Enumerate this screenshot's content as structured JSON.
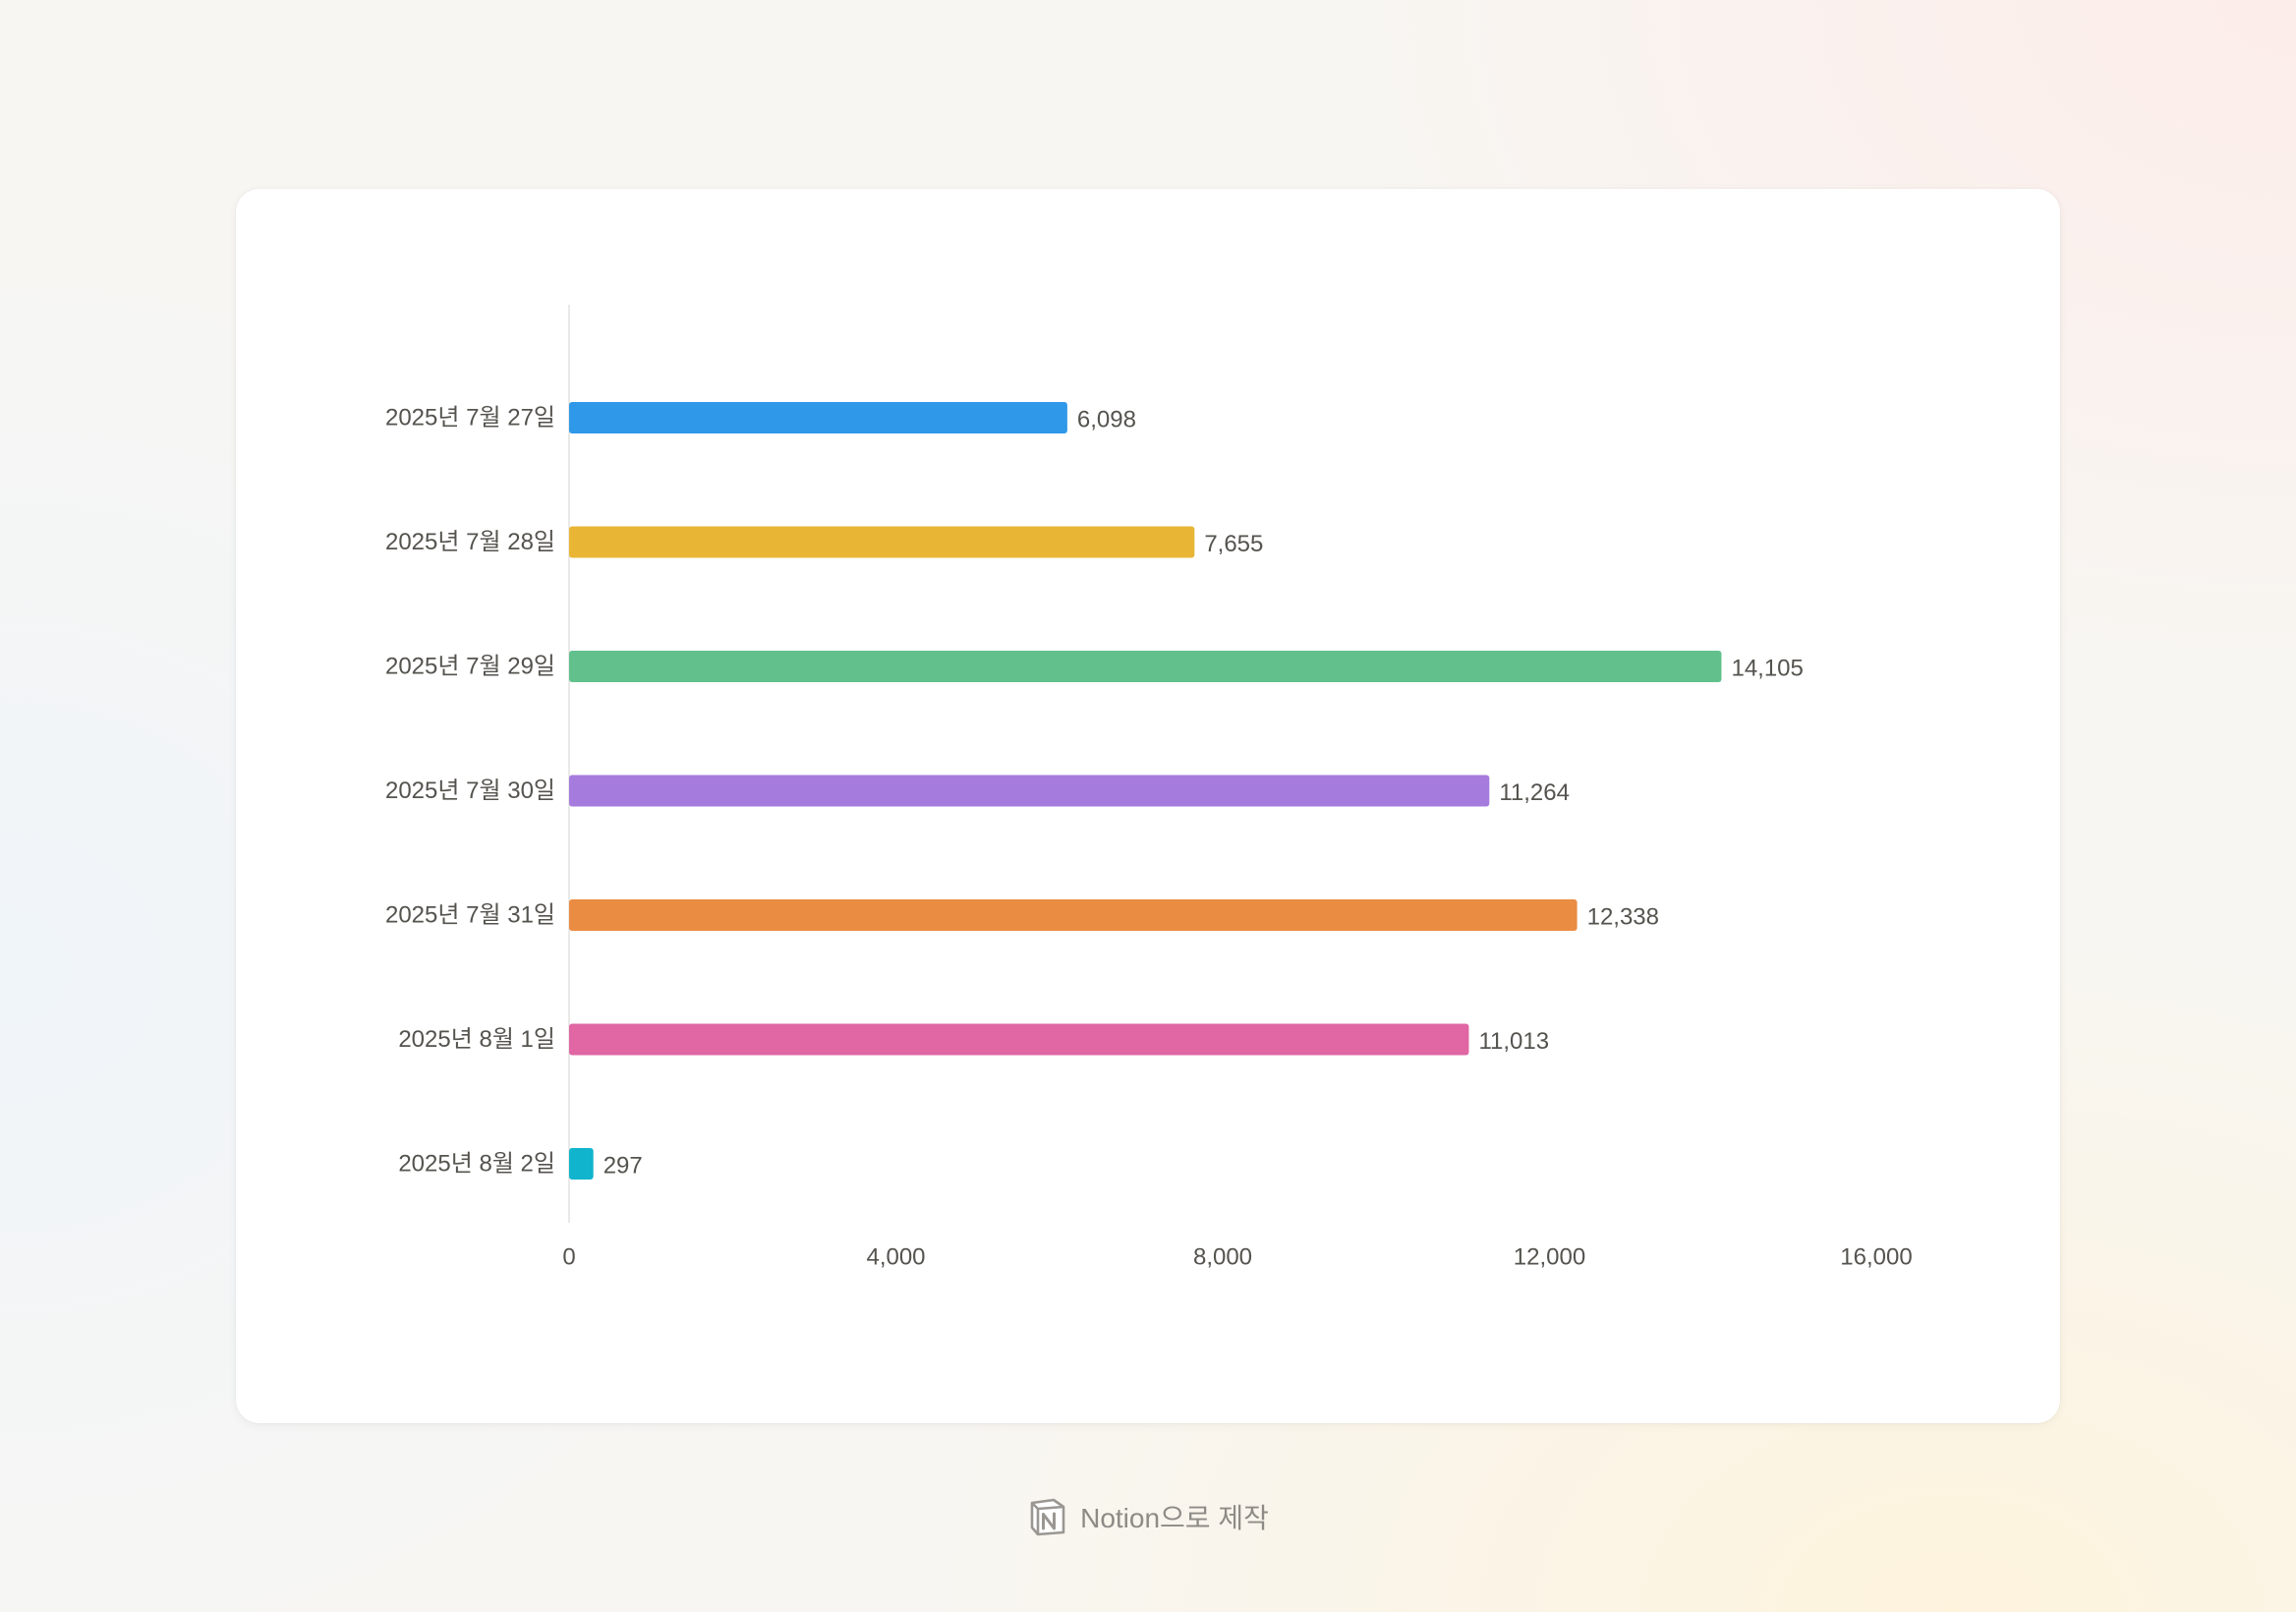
{
  "chart_data": {
    "type": "bar",
    "orientation": "horizontal",
    "title": "",
    "xlabel": "",
    "ylabel": "",
    "categories": [
      "2025년 7월 27일",
      "2025년 7월 28일",
      "2025년 7월 29일",
      "2025년 7월 30일",
      "2025년 7월 31일",
      "2025년 8월 1일",
      "2025년 8월 2일"
    ],
    "values": [
      6098,
      7655,
      14105,
      11264,
      12338,
      11013,
      297
    ],
    "value_labels": [
      "6,098",
      "7,655",
      "14,105",
      "11,264",
      "12,338",
      "11,013",
      "297"
    ],
    "colors": [
      "#2f98e8",
      "#e8b634",
      "#61c08c",
      "#a67bde",
      "#ea8c42",
      "#e066a4",
      "#10b4cc"
    ],
    "xlim": [
      0,
      16000
    ],
    "x_ticks": [
      0,
      4000,
      8000,
      12000,
      16000
    ],
    "x_tick_labels": [
      "0",
      "4,000",
      "8,000",
      "12,000",
      "16,000"
    ],
    "grid": false,
    "legend": "none"
  },
  "footer": {
    "logo_icon": "notion-logo-icon",
    "text": "Notion으로 제작"
  }
}
